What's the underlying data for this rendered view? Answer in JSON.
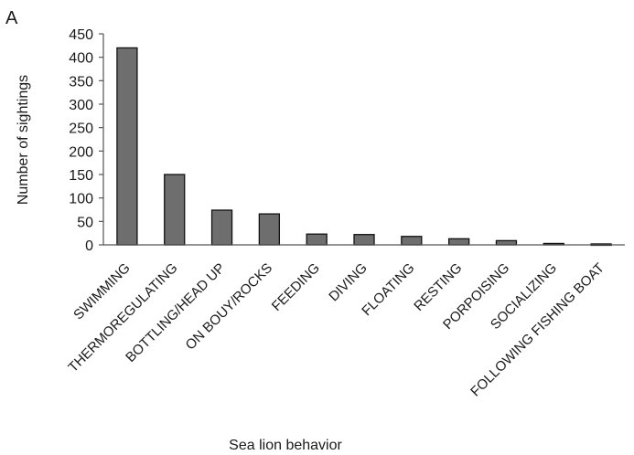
{
  "panel_letter": "A",
  "chart_data": {
    "type": "bar",
    "title": "",
    "xlabel": "Sea lion behavior",
    "ylabel": "Number of sightings",
    "ylim": [
      0,
      450
    ],
    "yticks": [
      0,
      50,
      100,
      150,
      200,
      250,
      300,
      350,
      400,
      450
    ],
    "grid": false,
    "legend": "none",
    "bar_color": "#6e6e6e",
    "categories": [
      "SWIMMING",
      "THERMOREGULATING",
      "BOTTLING/HEAD UP",
      "ON BOUY/ROCKS",
      "FEEDING",
      "DIVING",
      "FLOATING",
      "RESTING",
      "PORPOISING",
      "SOCIALIZING",
      "FOLLOWING FISHING BOAT"
    ],
    "values": [
      420,
      150,
      74,
      66,
      23,
      22,
      18,
      13,
      9,
      3,
      2
    ]
  }
}
